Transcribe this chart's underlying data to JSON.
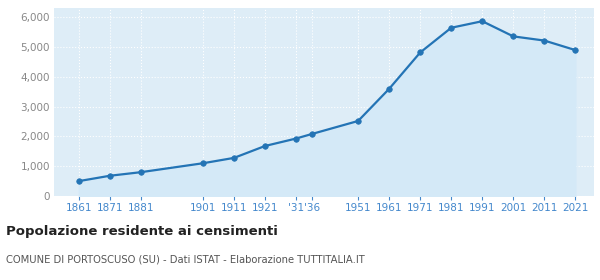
{
  "years": [
    1861,
    1871,
    1881,
    1901,
    1911,
    1921,
    1931,
    1936,
    1951,
    1961,
    1971,
    1981,
    1991,
    2001,
    2011,
    2021
  ],
  "population": [
    500,
    680,
    800,
    1100,
    1280,
    1680,
    1930,
    2080,
    2520,
    3600,
    4820,
    5650,
    5870,
    5360,
    5220,
    4900
  ],
  "line_color": "#2474b5",
  "fill_color": "#d4e9f7",
  "marker_color": "#2474b5",
  "bg_color": "#deedf7",
  "grid_color": "#ffffff",
  "title": "Popolazione residente ai censimenti",
  "subtitle": "COMUNE DI PORTOSCUSO (SU) - Dati ISTAT - Elaborazione TUTTITALIA.IT",
  "title_color": "#222222",
  "subtitle_color": "#555555",
  "tick_color_x": "#4488cc",
  "tick_color_y": "#888888",
  "ylim": [
    0,
    6300
  ],
  "xlim": [
    1853,
    2027
  ],
  "yticks": [
    0,
    1000,
    2000,
    3000,
    4000,
    5000,
    6000
  ]
}
